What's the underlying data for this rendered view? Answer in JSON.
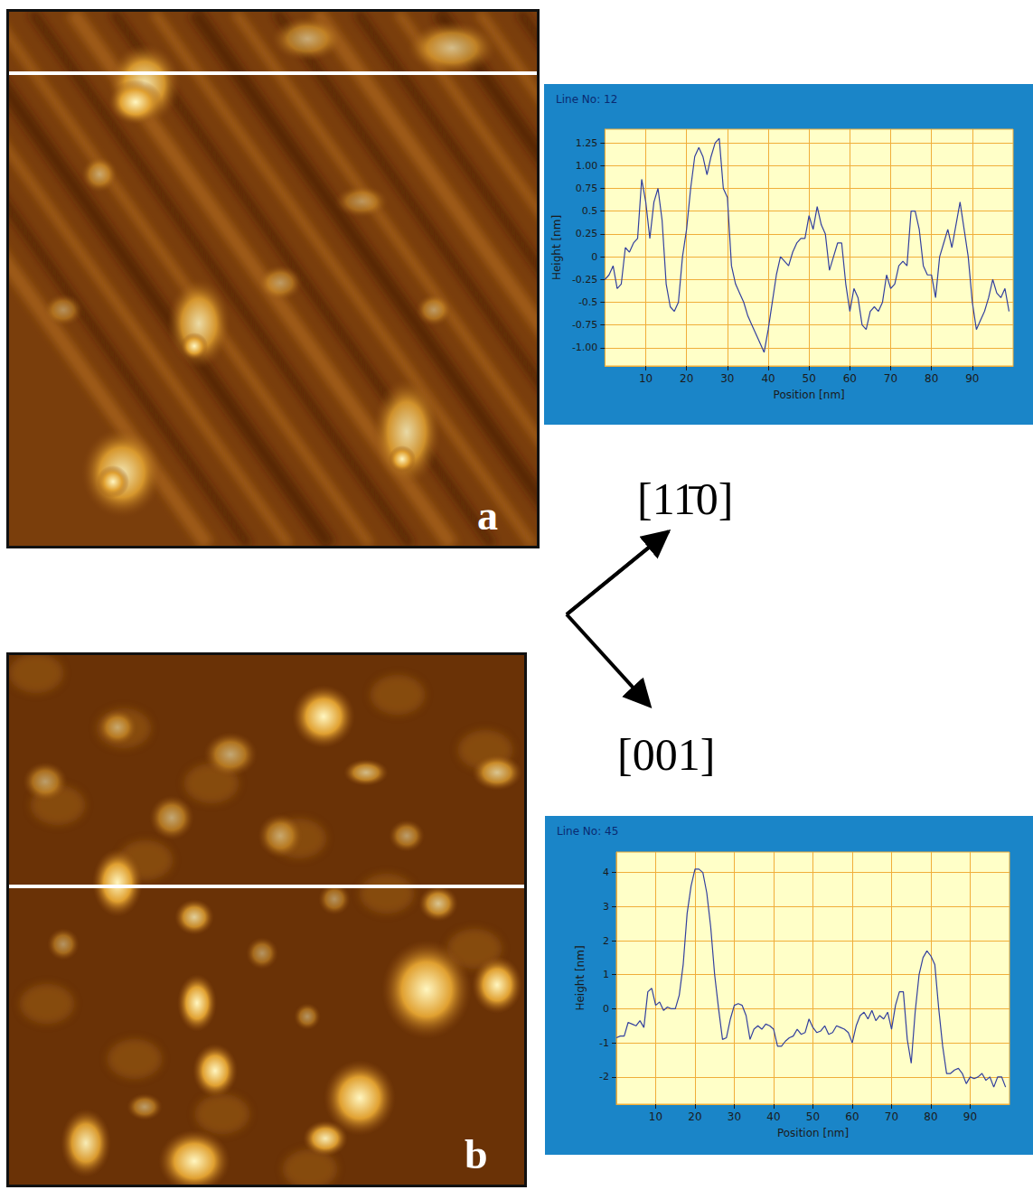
{
  "images": [
    {
      "label": "a"
    },
    {
      "label": "b"
    }
  ],
  "directions": [
    "[11̄0]",
    "[001]"
  ],
  "chart_data": [
    {
      "type": "line",
      "title": "Line No: 12",
      "x_label": "Position [nm]",
      "y_label": "Height [nm]",
      "color": "#33409e",
      "grid": true,
      "xlim": [
        0,
        100
      ],
      "xticks": [
        10,
        20,
        30,
        40,
        50,
        60,
        70,
        80,
        90
      ],
      "ylim": [
        -1.2,
        1.4
      ],
      "yticks": [
        {
          "value": -1,
          "label": "-1.00"
        },
        -0.75,
        -0.5,
        -0.25,
        0,
        0.25,
        0.5,
        0.75,
        {
          "value": 1,
          "label": "1.00"
        },
        1.25
      ],
      "x": [
        0,
        1,
        2,
        3,
        4,
        5,
        6,
        7,
        8,
        9,
        10,
        11,
        12,
        13,
        14,
        15,
        16,
        17,
        18,
        19,
        20,
        21,
        22,
        23,
        24,
        25,
        26,
        27,
        28,
        29,
        30,
        31,
        32,
        33,
        34,
        35,
        36,
        37,
        38,
        39,
        40,
        41,
        42,
        43,
        44,
        45,
        46,
        47,
        48,
        49,
        50,
        51,
        52,
        53,
        54,
        55,
        56,
        57,
        58,
        59,
        60,
        61,
        62,
        63,
        64,
        65,
        66,
        67,
        68,
        69,
        70,
        71,
        72,
        73,
        74,
        75,
        76,
        77,
        78,
        79,
        80,
        81,
        82,
        83,
        84,
        85,
        86,
        87,
        88,
        89,
        90,
        91,
        92,
        93,
        94,
        95,
        96,
        97,
        98,
        99
      ],
      "values": [
        -0.25,
        -0.2,
        -0.1,
        -0.35,
        -0.3,
        0.1,
        0.05,
        0.15,
        0.2,
        0.85,
        0.6,
        0.2,
        0.6,
        0.75,
        0.4,
        -0.3,
        -0.55,
        -0.6,
        -0.5,
        0,
        0.3,
        0.75,
        1.1,
        1.2,
        1.1,
        0.9,
        1.1,
        1.25,
        1.3,
        0.75,
        0.65,
        -0.1,
        -0.3,
        -0.4,
        -0.5,
        -0.65,
        -0.75,
        -0.85,
        -0.95,
        -1.05,
        -0.8,
        -0.5,
        -0.2,
        0,
        -0.05,
        -0.1,
        0.05,
        0.15,
        0.2,
        0.2,
        0.45,
        0.3,
        0.55,
        0.35,
        0.25,
        -0.15,
        0,
        0.15,
        0.15,
        -0.3,
        -0.6,
        -0.35,
        -0.45,
        -0.75,
        -0.8,
        -0.6,
        -0.55,
        -0.6,
        -0.5,
        -0.2,
        -0.35,
        -0.3,
        -0.1,
        -0.05,
        -0.1,
        0.5,
        0.5,
        0.3,
        -0.1,
        -0.2,
        -0.2,
        -0.45,
        0,
        0.15,
        0.3,
        0.1,
        0.35,
        0.6,
        0.3,
        0,
        -0.5,
        -0.8,
        -0.7,
        -0.6,
        -0.45,
        -0.25,
        -0.4,
        -0.45,
        -0.35,
        -0.6
      ]
    },
    {
      "type": "line",
      "title": "Line No: 45",
      "x_label": "Position [nm]",
      "y_label": "Height [nm]",
      "color": "#33409e",
      "grid": true,
      "xlim": [
        0,
        100
      ],
      "xticks": [
        10,
        20,
        30,
        40,
        50,
        60,
        70,
        80,
        90
      ],
      "ylim": [
        -2.8,
        4.6
      ],
      "yticks": [
        -2,
        -1,
        0,
        1,
        2,
        3,
        4
      ],
      "x": [
        0,
        1,
        2,
        3,
        4,
        5,
        6,
        7,
        8,
        9,
        10,
        11,
        12,
        13,
        14,
        15,
        16,
        17,
        18,
        19,
        20,
        21,
        22,
        23,
        24,
        25,
        26,
        27,
        28,
        29,
        30,
        31,
        32,
        33,
        34,
        35,
        36,
        37,
        38,
        39,
        40,
        41,
        42,
        43,
        44,
        45,
        46,
        47,
        48,
        49,
        50,
        51,
        52,
        53,
        54,
        55,
        56,
        57,
        58,
        59,
        60,
        61,
        62,
        63,
        64,
        65,
        66,
        67,
        68,
        69,
        70,
        71,
        72,
        73,
        74,
        75,
        76,
        77,
        78,
        79,
        80,
        81,
        82,
        83,
        84,
        85,
        86,
        87,
        88,
        89,
        90,
        91,
        92,
        93,
        94,
        95,
        96,
        97,
        98,
        99
      ],
      "values": [
        -0.85,
        -0.8,
        -0.8,
        -0.4,
        -0.45,
        -0.5,
        -0.35,
        -0.55,
        0.5,
        0.6,
        0.1,
        0.2,
        -0.05,
        0.05,
        0,
        0,
        0.4,
        1.3,
        2.8,
        3.6,
        4.1,
        4.1,
        4,
        3.4,
        2.4,
        1,
        0,
        -0.9,
        -0.85,
        -0.3,
        0.1,
        0.15,
        0.1,
        -0.2,
        -0.9,
        -0.6,
        -0.5,
        -0.6,
        -0.45,
        -0.5,
        -0.6,
        -1.1,
        -1.1,
        -0.95,
        -0.85,
        -0.8,
        -0.6,
        -0.75,
        -0.7,
        -0.3,
        -0.55,
        -0.7,
        -0.65,
        -0.5,
        -0.75,
        -0.7,
        -0.5,
        -0.55,
        -0.6,
        -0.7,
        -1,
        -0.5,
        -0.2,
        -0.1,
        -0.3,
        -0.05,
        -0.35,
        -0.2,
        -0.3,
        -0.1,
        -0.6,
        0.1,
        0.5,
        0.5,
        -0.9,
        -1.6,
        -0.1,
        1,
        1.5,
        1.7,
        1.55,
        1.3,
        0,
        -1.1,
        -1.9,
        -1.9,
        -1.8,
        -1.75,
        -1.9,
        -2.2,
        -2,
        -2.05,
        -2,
        -1.9,
        -2.1,
        -2,
        -2.3,
        -2,
        -2,
        -2.3
      ]
    }
  ]
}
